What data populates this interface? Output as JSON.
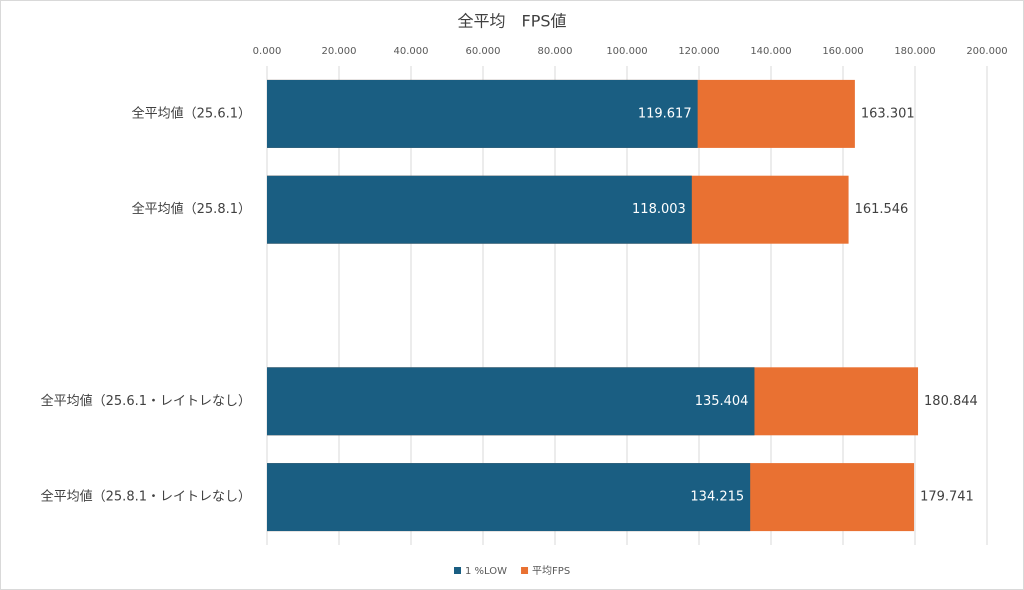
{
  "chart_data": {
    "type": "bar",
    "orientation": "horizontal",
    "overlap": true,
    "title": "全平均　FPS値",
    "categories": [
      "全平均値（25.6.1）",
      "全平均値（25.8.1）",
      null,
      "全平均値（25.6.1・レイトレなし）",
      "全平均値（25.8.1・レイトレなし）"
    ],
    "series": [
      {
        "name": "平均FPS",
        "color": "#e97132",
        "values": [
          163.301,
          161.546,
          null,
          180.844,
          179.741
        ]
      },
      {
        "name": "1 %LOW",
        "color": "#1a5e82",
        "values": [
          119.617,
          118.003,
          null,
          135.404,
          134.215
        ]
      }
    ],
    "legend_order": [
      "1 %LOW",
      "平均FPS"
    ],
    "xlim": [
      0,
      200
    ],
    "xticks": [
      {
        "value": 0,
        "label": "0.000"
      },
      {
        "value": 20,
        "label": "20.000"
      },
      {
        "value": 40,
        "label": "40.000"
      },
      {
        "value": 60,
        "label": "60.000"
      },
      {
        "value": 80,
        "label": "80.000"
      },
      {
        "value": 100,
        "label": "100.000"
      },
      {
        "value": 120,
        "label": "120.000"
      },
      {
        "value": 140,
        "label": "140.000"
      },
      {
        "value": 160,
        "label": "160.000"
      },
      {
        "value": 180,
        "label": "180.000"
      },
      {
        "value": 200,
        "label": "200.000"
      }
    ],
    "grid": true,
    "axis_position": "top",
    "legend": "bottom"
  }
}
